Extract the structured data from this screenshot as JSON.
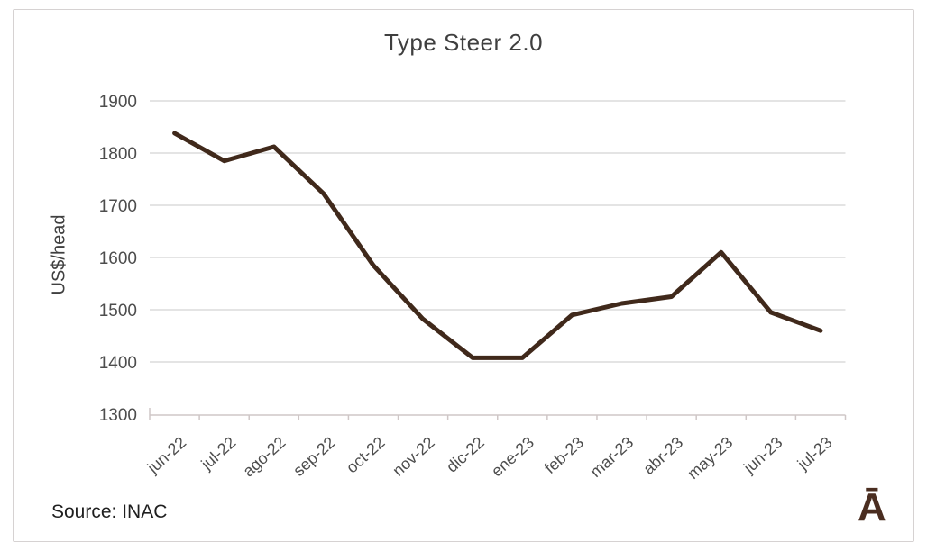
{
  "chart_title": "Type Steer 2.0",
  "source_label": "Source: INAC",
  "logo_glyph": "Ā",
  "colors": {
    "line": "#40291b",
    "grid": "#dcdcdc",
    "axis": "#cfc7c7",
    "title_text": "#3f3f3f",
    "tick_text": "#4d4d4d",
    "source_text": "#1f1f1f",
    "logo": "#4a2d20",
    "frame_border": "#d6d2d2"
  },
  "chart_data": {
    "type": "line",
    "title": "Type Steer 2.0",
    "xlabel": "",
    "ylabel": "US$/head",
    "categories": [
      "jun-22",
      "jul-22",
      "ago-22",
      "sep-22",
      "oct-22",
      "nov-22",
      "dic-22",
      "ene-23",
      "feb-23",
      "mar-23",
      "abr-23",
      "may-23",
      "jun-23",
      "jul-23"
    ],
    "series": [
      {
        "name": "Type Steer 2.0",
        "values": [
          1838,
          1785,
          1812,
          1722,
          1585,
          1482,
          1408,
          1408,
          1490,
          1512,
          1525,
          1610,
          1495,
          1460
        ]
      }
    ],
    "ylim": [
      1300,
      1900
    ],
    "yticks": [
      1300,
      1400,
      1500,
      1600,
      1700,
      1800,
      1900
    ],
    "grid": true,
    "legend_position": "none",
    "x_tick_rotation_deg": -42,
    "source": "Source: INAC"
  }
}
